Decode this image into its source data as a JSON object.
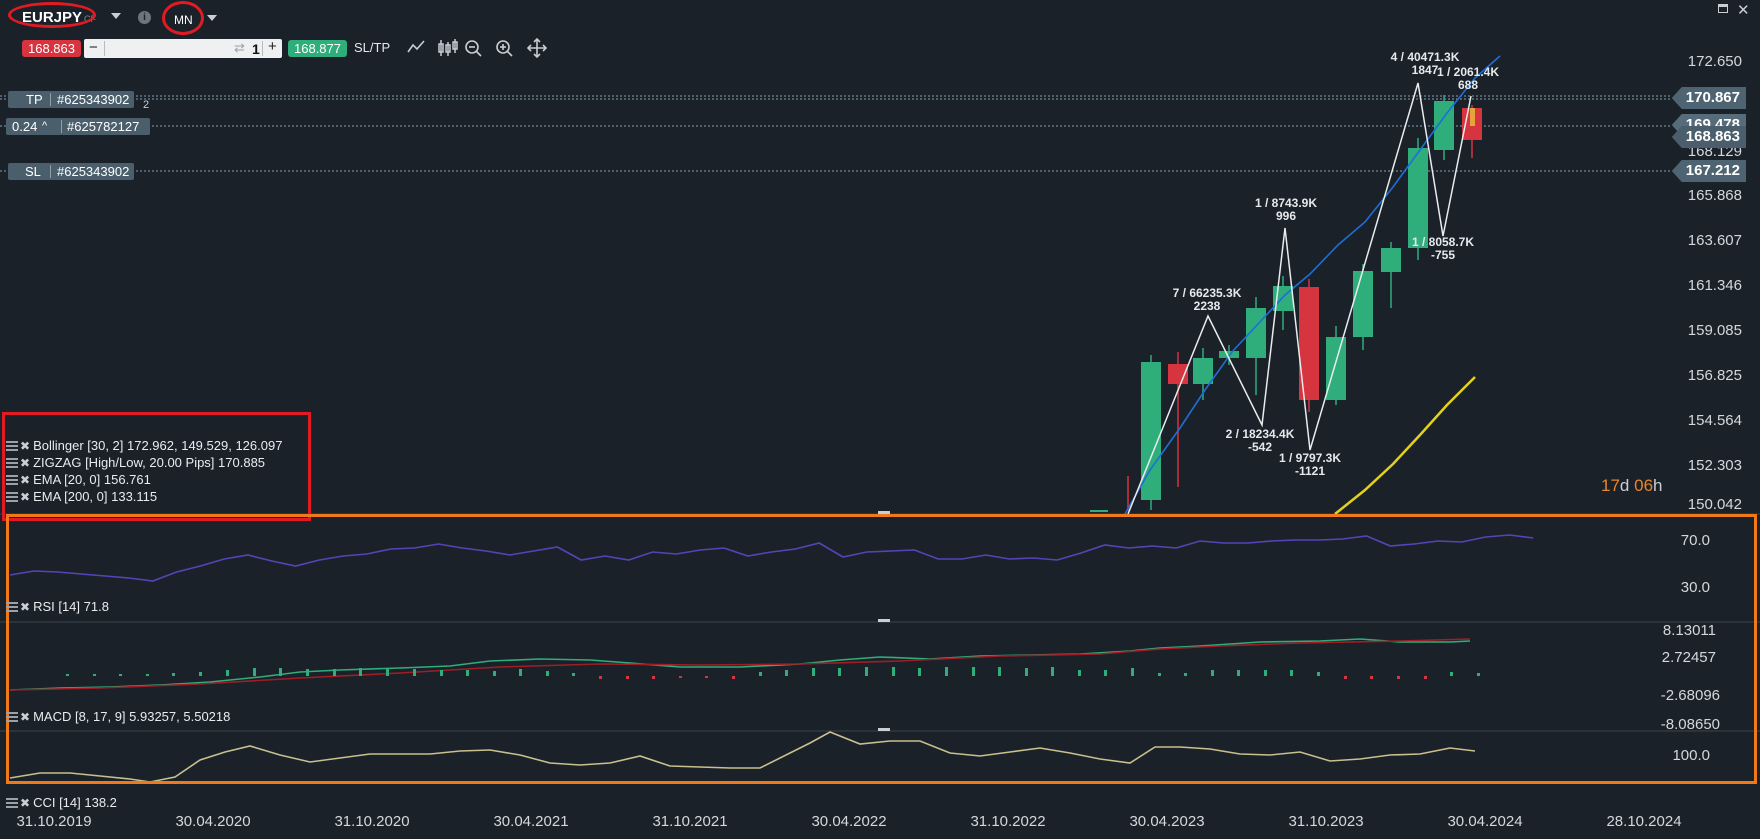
{
  "header": {
    "symbol": "EURJPY",
    "symbol_suffix": "CF",
    "timeframe": "MN",
    "sell_price": "168.863",
    "quantity": "1",
    "buy_price": "168.877",
    "sltp_label": "SL/TP",
    "minus": "−",
    "plus": "+"
  },
  "orders": {
    "tp_label": "TP",
    "tp_id": "#625343902",
    "tp_hidden_suffix": "2",
    "pos_size": "0.24",
    "pos_id": "#625782127",
    "sl_label": "SL",
    "sl_id": "#625343902"
  },
  "price_axis": [
    "172.650",
    "170.867",
    "169.478",
    "168.863",
    "168.129",
    "167.212",
    "165.868",
    "163.607",
    "161.346",
    "159.085",
    "156.825",
    "154.564",
    "152.303",
    "150.042"
  ],
  "price_tags": {
    "tp": "170.867",
    "current": "168.863",
    "partial": "169.478",
    "sl": "167.212"
  },
  "countdown": {
    "days": "17",
    "d_suffix": "d",
    "hours": "06",
    "h_suffix": "h"
  },
  "zigzag_labels": [
    {
      "l1": "4 / 40471.3K",
      "l2": "1847"
    },
    {
      "l1": "1 / 2061.4K",
      "l2": "688"
    },
    {
      "l1": "1 / 8743.9K",
      "l2": "996"
    },
    {
      "l1": "1 / 8058.7K",
      "l2": "-755"
    },
    {
      "l1": "7 / 66235.3K",
      "l2": "2238"
    },
    {
      "l1": "2 / 18234.4K",
      "l2": "-542"
    },
    {
      "l1": "1 / 9797.3K",
      "l2": "-1121"
    }
  ],
  "main_indicators": [
    "Bollinger [30, 2] 172.962, 149.529, 126.097",
    "ZIGZAG [High/Low, 20.00 Pips] 170.885",
    "EMA [20, 0] 156.761",
    "EMA [200, 0] 133.115"
  ],
  "rsi": {
    "label": "RSI [14] 71.8",
    "axis": [
      "70.0",
      "30.0"
    ]
  },
  "macd": {
    "label": "MACD [8, 17, 9] 5.93257, 5.50218",
    "axis": [
      "8.13011",
      "2.72457",
      "-2.68096",
      "-8.08650"
    ]
  },
  "cci": {
    "label": "CCI [14] 138.2",
    "axis": [
      "100.0"
    ]
  },
  "dates": [
    "31.10.2019",
    "30.04.2020",
    "31.10.2020",
    "30.04.2021",
    "31.10.2021",
    "30.04.2022",
    "31.10.2022",
    "30.04.2023",
    "31.10.2023",
    "30.04.2024",
    "28.10.2024"
  ],
  "colors": {
    "bg": "#1b2129",
    "bull": "#2fae7c",
    "bear": "#d6343f",
    "ema20": "#1d6fd6",
    "ema200": "#e2d21b",
    "zigzag": "#e8ecee",
    "rsi": "#5544b8",
    "cci": "#c8c08e",
    "annotation_red": "#e01b24",
    "annotation_orange": "#f07a1a",
    "countdown": "#e8862a"
  }
}
